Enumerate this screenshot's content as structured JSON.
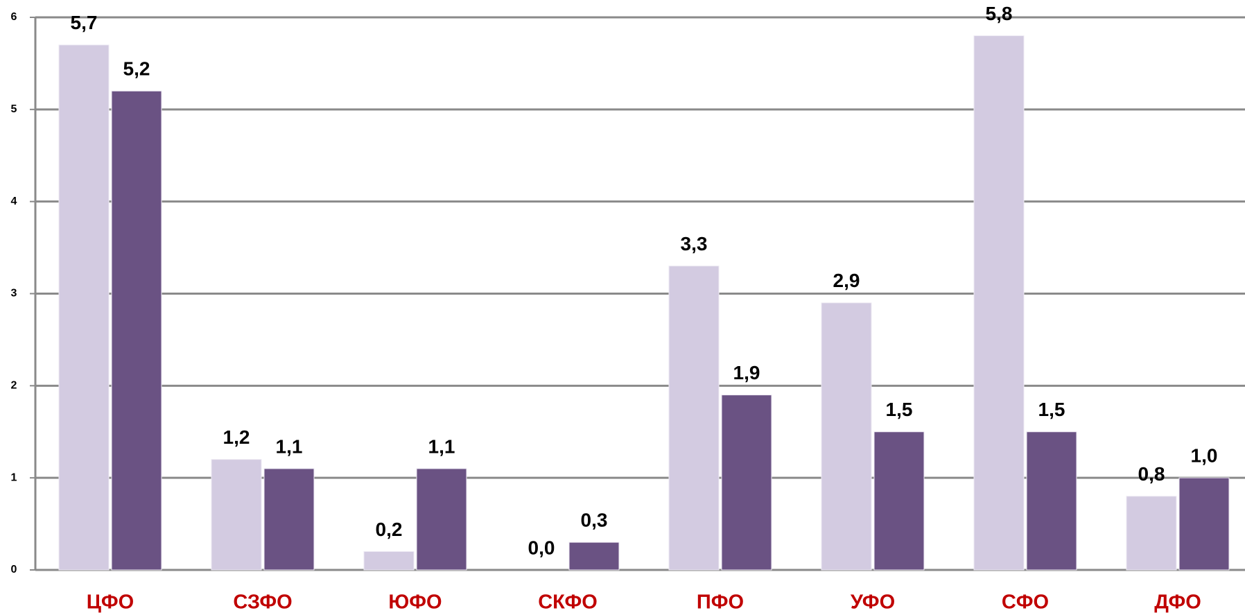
{
  "chart_data": {
    "type": "bar",
    "categories": [
      "ЦФО",
      "СЗФО",
      "ЮФО",
      "СКФО",
      "ПФО",
      "УФО",
      "СФО",
      "ДФО"
    ],
    "series": [
      {
        "color": "#d3cbe1",
        "values": [
          5.7,
          1.2,
          0.2,
          0.0,
          3.3,
          2.9,
          5.8,
          0.8
        ],
        "value_labels": [
          "5,7",
          "1,2",
          "0,2",
          "0,0",
          "3,3",
          "2,9",
          "5,8",
          "0,8"
        ]
      },
      {
        "color": "#6a5283",
        "values": [
          5.2,
          1.1,
          1.1,
          0.3,
          1.9,
          1.5,
          1.5,
          1.0
        ],
        "value_labels": [
          "5,2",
          "1,1",
          "1,1",
          "0,3",
          "1,9",
          "1,5",
          "1,5",
          "1,0"
        ]
      }
    ],
    "ylim": [
      0,
      6
    ],
    "yticks": [
      0,
      1,
      2,
      3,
      4,
      5,
      6
    ],
    "grid": true
  }
}
